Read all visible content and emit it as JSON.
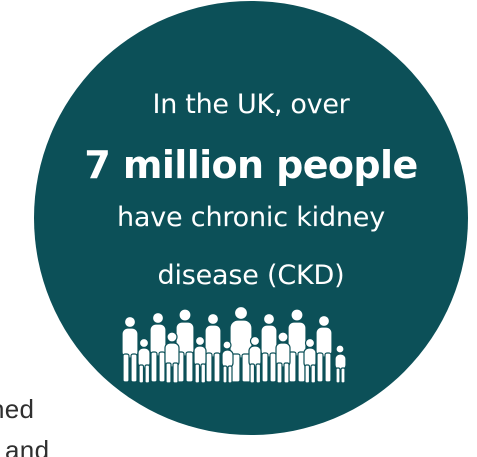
{
  "background_text": {
    "line1": "ned",
    "line2": "t and"
  },
  "stat": {
    "intro": "In the UK, over",
    "headline": "7 million people",
    "line2": "have chronic kidney",
    "line3": "disease (CKD)"
  },
  "icons": {
    "group": "people-group-icon"
  },
  "colors": {
    "circle": "#0c5058",
    "text_on_circle": "#ffffff",
    "page_text": "#2f2f2f"
  }
}
